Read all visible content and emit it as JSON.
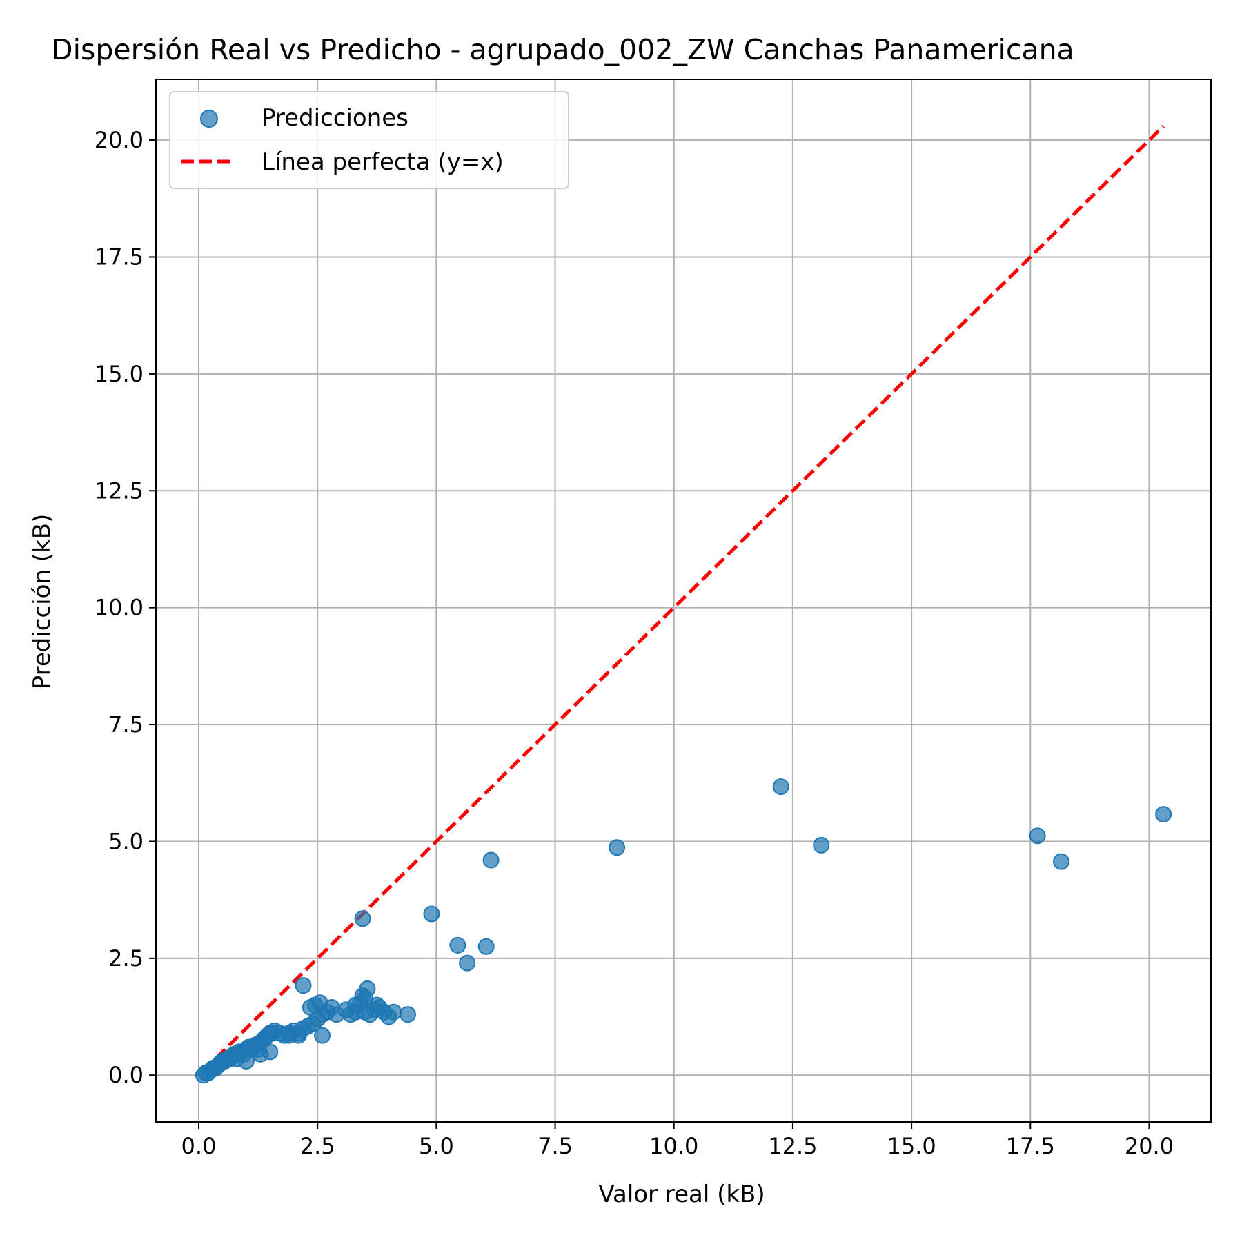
{
  "chart_data": {
    "type": "scatter",
    "title": "Dispersión Real vs Predicho - agrupado_002_ZW Canchas Panamericana",
    "xlabel": "Valor real (kB)",
    "ylabel": "Predicción (kB)",
    "xlim": [
      -0.9,
      21.3
    ],
    "ylim": [
      -1.0,
      21.3
    ],
    "xticks": [
      0.0,
      2.5,
      5.0,
      7.5,
      10.0,
      12.5,
      15.0,
      17.5,
      20.0
    ],
    "yticks": [
      0.0,
      2.5,
      5.0,
      7.5,
      10.0,
      12.5,
      15.0,
      17.5,
      20.0
    ],
    "xtick_labels": [
      "0.0",
      "2.5",
      "5.0",
      "7.5",
      "10.0",
      "12.5",
      "15.0",
      "17.5",
      "20.0"
    ],
    "ytick_labels": [
      "0.0",
      "2.5",
      "5.0",
      "7.5",
      "10.0",
      "12.5",
      "15.0",
      "17.5",
      "20.0"
    ],
    "grid": true,
    "legend_position": "top-left",
    "series": [
      {
        "name": "Predicciones",
        "kind": "scatter",
        "color": "#1f77b4",
        "x": [
          0.1,
          0.15,
          0.2,
          0.25,
          0.3,
          0.35,
          0.4,
          0.45,
          0.5,
          0.55,
          0.6,
          0.65,
          0.7,
          0.75,
          0.8,
          0.85,
          0.9,
          0.95,
          1.0,
          1.05,
          1.1,
          1.15,
          1.2,
          1.25,
          1.3,
          1.35,
          1.4,
          1.45,
          1.5,
          1.55,
          1.6,
          1.7,
          1.8,
          1.9,
          2.0,
          2.1,
          2.2,
          2.3,
          2.4,
          2.5,
          2.6,
          0.8,
          1.0,
          1.3,
          1.5,
          1.9,
          2.1,
          2.35,
          2.45,
          2.55,
          2.7,
          2.8,
          2.9,
          3.1,
          3.2,
          3.3,
          3.4,
          3.45,
          3.5,
          3.55,
          3.6,
          3.7,
          3.75,
          3.8,
          3.9,
          4.0,
          4.1,
          4.4,
          2.2,
          2.6,
          3.3,
          3.5,
          3.45,
          4.9,
          5.45,
          5.65,
          6.05,
          6.15,
          8.8,
          12.25,
          13.1,
          17.65,
          18.15,
          20.3
        ],
        "y": [
          0.0,
          0.05,
          0.05,
          0.1,
          0.15,
          0.15,
          0.2,
          0.25,
          0.3,
          0.3,
          0.35,
          0.35,
          0.4,
          0.45,
          0.45,
          0.5,
          0.5,
          0.45,
          0.55,
          0.6,
          0.55,
          0.6,
          0.65,
          0.55,
          0.7,
          0.75,
          0.8,
          0.85,
          0.9,
          0.9,
          0.95,
          0.9,
          0.85,
          0.9,
          0.95,
          0.9,
          1.0,
          1.05,
          1.1,
          1.2,
          1.3,
          0.35,
          0.3,
          0.45,
          0.5,
          0.85,
          0.85,
          1.45,
          1.5,
          1.55,
          1.35,
          1.45,
          1.3,
          1.4,
          1.3,
          1.5,
          1.55,
          1.7,
          1.65,
          1.85,
          1.3,
          1.4,
          1.5,
          1.45,
          1.35,
          1.25,
          1.35,
          1.3,
          1.92,
          0.85,
          1.35,
          1.35,
          3.35,
          3.45,
          2.78,
          2.4,
          2.75,
          4.6,
          4.87,
          6.17,
          4.92,
          5.12,
          4.57,
          5.58
        ]
      },
      {
        "name": "Línea perfecta (y=x)",
        "kind": "line",
        "style": "dashed",
        "color": "#ff0000",
        "x": [
          0.1,
          20.3
        ],
        "y": [
          0.1,
          20.3
        ]
      }
    ]
  }
}
